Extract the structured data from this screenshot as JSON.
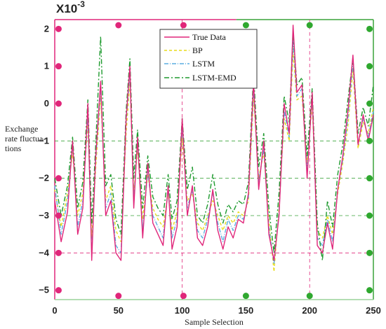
{
  "chart_data": {
    "type": "line",
    "scale_label": "X10",
    "scale_exponent": "-3",
    "xlabel": "Sample Selection",
    "ylabel_lines": [
      "Exchange",
      "rate fluctua-",
      "tions"
    ],
    "xlim": [
      0,
      250
    ],
    "ylim": [
      -5.25,
      2.25
    ],
    "xticks": [
      {
        "value": 0,
        "label": "0"
      },
      {
        "value": 50,
        "label": "50"
      },
      {
        "value": 100,
        "label": "100"
      },
      {
        "value": 150,
        "label": "150"
      },
      {
        "value": 200,
        "label": "200"
      },
      {
        "value": 250,
        "label": "250"
      }
    ],
    "yticks": [
      {
        "value": 2,
        "label": "2"
      },
      {
        "value": 1,
        "label": "1"
      },
      {
        "value": 0,
        "label": "0"
      },
      {
        "value": -1,
        "label": "−1"
      },
      {
        "value": -2,
        "label": "−2"
      },
      {
        "value": -3,
        "label": "−3"
      },
      {
        "value": -4,
        "label": "−4"
      },
      {
        "value": -5,
        "label": "−5"
      }
    ],
    "reference_lines": {
      "horizontal": [
        {
          "y": -1,
          "color": "#3aa33a"
        },
        {
          "y": -2,
          "color": "#3aa33a"
        },
        {
          "y": -3,
          "color": "#3aa33a"
        },
        {
          "y": -4,
          "color": "#e0267a"
        }
      ],
      "vertical": [
        {
          "x": 100,
          "color": "#e0267a"
        },
        {
          "x": 200,
          "color": "#e0267a"
        }
      ]
    },
    "markers": [
      {
        "x": 3,
        "y": 2,
        "color": "#e0267a"
      },
      {
        "x": 3,
        "y": 1,
        "color": "#e0267a"
      },
      {
        "x": 3,
        "y": 0,
        "color": "#e0267a"
      },
      {
        "x": 3,
        "y": -2,
        "color": "#e0267a"
      },
      {
        "x": 3,
        "y": -3,
        "color": "#e0267a"
      },
      {
        "x": 3,
        "y": -4,
        "color": "#e0267a"
      },
      {
        "x": 3,
        "y": -5,
        "color": "#e0267a"
      },
      {
        "x": 50,
        "y": 2.1,
        "color": "#e0267a"
      },
      {
        "x": 50,
        "y": -5.15,
        "color": "#e0267a"
      },
      {
        "x": 101,
        "y": 2.1,
        "color": "#e0267a"
      },
      {
        "x": 101,
        "y": -5.15,
        "color": "#e0267a"
      },
      {
        "x": 150,
        "y": 2.1,
        "color": "#2fa82f"
      },
      {
        "x": 150,
        "y": -5.15,
        "color": "#2fa82f"
      },
      {
        "x": 200,
        "y": 2.1,
        "color": "#2fa82f"
      },
      {
        "x": 200,
        "y": -5.15,
        "color": "#2fa82f"
      },
      {
        "x": 247,
        "y": 2,
        "color": "#2fa82f"
      },
      {
        "x": 247,
        "y": 1,
        "color": "#2fa82f"
      },
      {
        "x": 247,
        "y": 0,
        "color": "#2fa82f"
      },
      {
        "x": 247,
        "y": -1,
        "color": "#2fa82f"
      },
      {
        "x": 247,
        "y": -2,
        "color": "#2fa82f"
      },
      {
        "x": 247,
        "y": -3,
        "color": "#2fa82f"
      },
      {
        "x": 247,
        "y": -4,
        "color": "#2fa82f"
      },
      {
        "x": 247,
        "y": -5,
        "color": "#2fa82f"
      }
    ],
    "series": [
      {
        "name": "True Data",
        "color": "#e0267a",
        "dash": "",
        "x": [
          0,
          5,
          10,
          14,
          18,
          22,
          26,
          29,
          32,
          36,
          40,
          44,
          48,
          52,
          56,
          59,
          62,
          65,
          69,
          73,
          77,
          81,
          85,
          89,
          92,
          96,
          100,
          104,
          108,
          112,
          116,
          120,
          124,
          128,
          132,
          136,
          140,
          144,
          148,
          152,
          156,
          160,
          164,
          168,
          172,
          176,
          180,
          184,
          187,
          190,
          194,
          198,
          202,
          206,
          210,
          214,
          218,
          222,
          226,
          230,
          234,
          238,
          242,
          246,
          250
        ],
        "y": [
          -2.6,
          -3.7,
          -2.9,
          -1.0,
          -3.5,
          -2.8,
          0.0,
          -4.2,
          -1.5,
          0.6,
          -3.0,
          -2.6,
          -4.0,
          -4.2,
          -0.4,
          1.0,
          -2.8,
          -0.9,
          -3.6,
          -1.6,
          -3.2,
          -3.5,
          -3.8,
          -2.2,
          -3.9,
          -3.3,
          -0.4,
          -3.0,
          -2.2,
          -3.6,
          -3.8,
          -3.3,
          -2.3,
          -3.4,
          -3.9,
          -3.3,
          -3.6,
          -3.1,
          -3.2,
          -2.4,
          0.6,
          -2.3,
          -1.0,
          -3.5,
          -4.2,
          -3.0,
          0.0,
          -0.8,
          2.1,
          0.3,
          0.5,
          -2.0,
          0.3,
          -3.8,
          -4.0,
          -3.2,
          -3.9,
          -2.3,
          -1.4,
          -0.2,
          1.3,
          -1.1,
          -0.3,
          -1.0,
          -0.3
        ]
      },
      {
        "name": "BP",
        "color": "#e8dc1a",
        "dash": "4,3",
        "x": [
          0,
          5,
          10,
          14,
          18,
          22,
          26,
          29,
          32,
          36,
          40,
          44,
          48,
          52,
          56,
          59,
          62,
          65,
          69,
          73,
          77,
          81,
          85,
          89,
          92,
          96,
          100,
          104,
          108,
          112,
          116,
          120,
          124,
          128,
          132,
          136,
          140,
          144,
          148,
          152,
          156,
          160,
          164,
          168,
          172,
          176,
          180,
          184,
          187,
          190,
          194,
          198,
          202,
          206,
          210,
          214,
          218,
          222,
          226,
          230,
          234,
          238,
          242,
          246,
          250
        ],
        "y": [
          -2.3,
          -3.3,
          -2.4,
          -1.3,
          -3.0,
          -2.4,
          -0.5,
          -3.6,
          -1.8,
          0.2,
          -2.6,
          -2.2,
          -3.4,
          -3.7,
          -0.8,
          0.6,
          -2.4,
          -1.2,
          -3.1,
          -1.9,
          -2.8,
          -3.1,
          -3.3,
          -2.4,
          -3.4,
          -2.9,
          -0.9,
          -2.6,
          -2.4,
          -3.2,
          -3.4,
          -3.0,
          -2.6,
          -3.0,
          -3.4,
          -3.0,
          -3.2,
          -2.9,
          -3.0,
          -2.6,
          0.2,
          -2.0,
          -1.3,
          -3.1,
          -4.5,
          -2.8,
          -0.4,
          -1.0,
          1.4,
          0.1,
          0.2,
          -1.6,
          0.0,
          -3.4,
          -3.6,
          -3.0,
          -3.5,
          -2.4,
          -1.6,
          -0.6,
          0.9,
          -1.2,
          -0.5,
          -0.8,
          -0.1
        ]
      },
      {
        "name": "LSTM",
        "color": "#5aaee0",
        "dash": "6,2,1,2",
        "x": [
          0,
          5,
          10,
          14,
          18,
          22,
          26,
          29,
          32,
          36,
          40,
          44,
          48,
          52,
          56,
          59,
          62,
          65,
          69,
          73,
          77,
          81,
          85,
          89,
          92,
          96,
          100,
          104,
          108,
          112,
          116,
          120,
          124,
          128,
          132,
          136,
          140,
          144,
          148,
          152,
          156,
          160,
          164,
          168,
          172,
          176,
          180,
          184,
          187,
          190,
          194,
          198,
          202,
          206,
          210,
          214,
          218,
          222,
          226,
          230,
          234,
          238,
          242,
          246,
          250
        ],
        "y": [
          -2.2,
          -3.5,
          -2.6,
          -1.1,
          -3.3,
          -2.6,
          -0.3,
          -4.0,
          -1.6,
          0.4,
          -2.8,
          -2.4,
          -3.8,
          -4.0,
          -0.5,
          0.8,
          -2.6,
          -1.0,
          -3.4,
          -1.8,
          -3.0,
          -3.3,
          -3.6,
          -2.3,
          -3.6,
          -3.1,
          -0.6,
          -2.8,
          -2.3,
          -3.4,
          -3.6,
          -3.1,
          -2.4,
          -3.2,
          -3.7,
          -3.1,
          -3.4,
          -3.0,
          -3.1,
          -2.5,
          0.4,
          -2.1,
          -1.2,
          -3.3,
          -4.3,
          -2.9,
          -0.2,
          -0.9,
          1.7,
          0.2,
          0.4,
          -1.8,
          0.2,
          -3.6,
          -3.8,
          -3.1,
          -3.7,
          -2.3,
          -1.5,
          -0.4,
          1.1,
          -1.1,
          -0.4,
          -0.9,
          -0.2
        ]
      },
      {
        "name": "LSTM-EMD",
        "color": "#1e9a2e",
        "dash": "7,3,2,3",
        "x": [
          0,
          5,
          10,
          14,
          18,
          22,
          26,
          29,
          32,
          36,
          40,
          44,
          48,
          52,
          56,
          59,
          62,
          65,
          69,
          73,
          77,
          81,
          85,
          89,
          92,
          96,
          100,
          104,
          108,
          112,
          116,
          120,
          124,
          128,
          132,
          136,
          140,
          144,
          148,
          152,
          156,
          160,
          164,
          168,
          172,
          176,
          180,
          184,
          187,
          190,
          194,
          198,
          202,
          206,
          210,
          214,
          218,
          222,
          226,
          230,
          234,
          238,
          242,
          246,
          250
        ],
        "y": [
          -2.0,
          -3.0,
          -2.2,
          -0.9,
          -2.8,
          -2.1,
          0.1,
          -3.2,
          -1.2,
          1.8,
          -2.2,
          -1.9,
          -3.1,
          -3.5,
          -0.2,
          1.2,
          -2.0,
          -0.7,
          -2.8,
          -1.4,
          -2.5,
          -2.8,
          -3.0,
          -1.9,
          -3.1,
          -2.6,
          -0.4,
          -2.3,
          -1.7,
          -3.0,
          -3.2,
          -2.7,
          -1.9,
          -2.7,
          -3.2,
          -2.7,
          -2.9,
          -2.6,
          -2.7,
          -2.1,
          0.8,
          -1.7,
          -0.8,
          -2.8,
          -4.0,
          -2.4,
          0.2,
          -0.5,
          1.9,
          0.5,
          0.7,
          -1.4,
          0.4,
          -3.2,
          -4.2,
          -2.6,
          -3.3,
          -1.9,
          -1.1,
          0.1,
          1.2,
          -0.8,
          -0.1,
          -0.6,
          0.5
        ]
      }
    ],
    "legend": {
      "position": "top-center"
    }
  }
}
